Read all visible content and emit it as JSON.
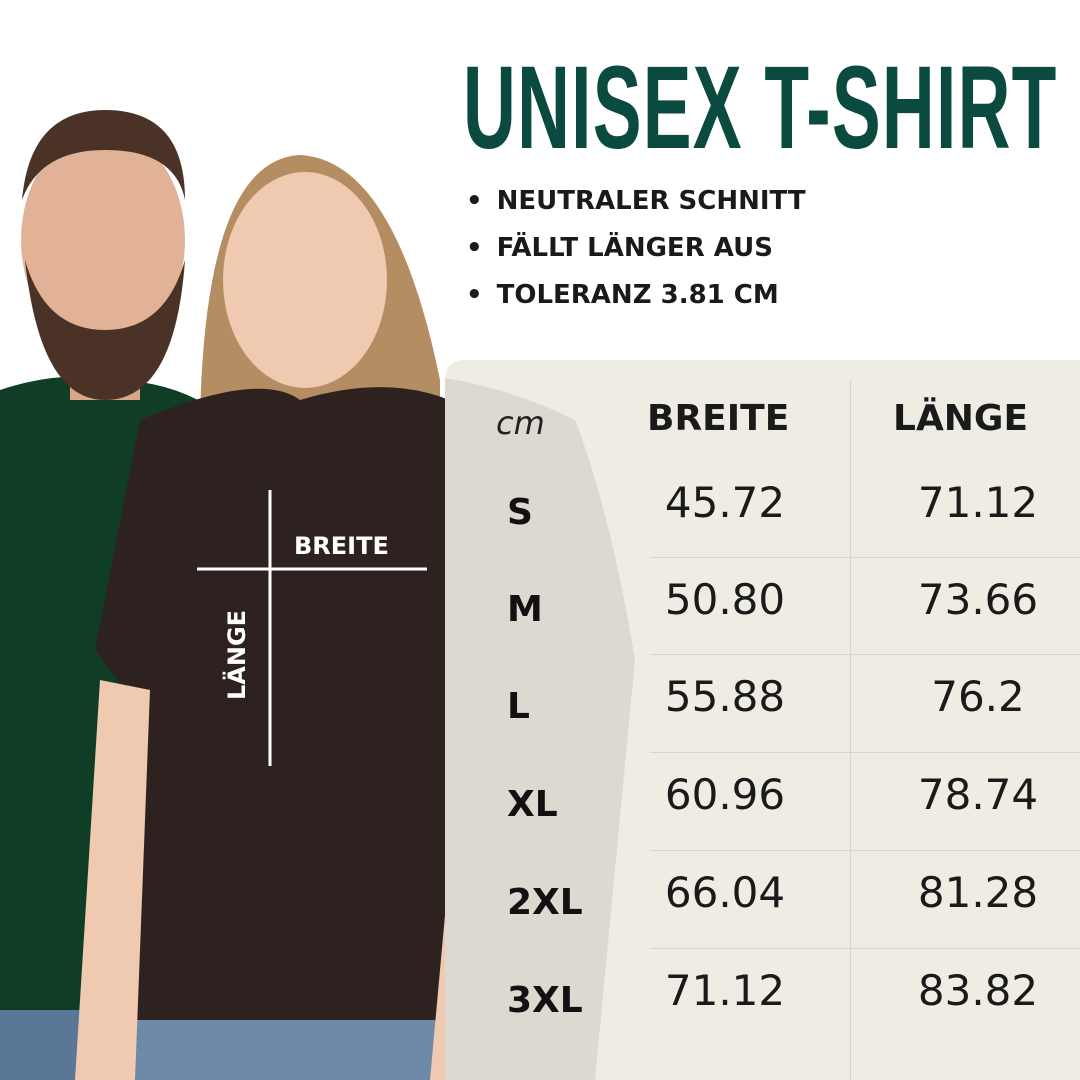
{
  "title": "UNISEX T-SHIRT",
  "features": [
    "NEUTRALER SCHNITT",
    "FÄLLT LÄNGER AUS",
    "TOLERANZ 3.81 CM"
  ],
  "diagram": {
    "width_label": "BREITE",
    "length_label": "LÄNGE"
  },
  "table": {
    "unit": "cm",
    "headers": [
      "BREITE",
      "LÄNGE"
    ],
    "rows": [
      {
        "size": "S",
        "breite": "45.72",
        "laenge": "71.12"
      },
      {
        "size": "M",
        "breite": "50.80",
        "laenge": "73.66"
      },
      {
        "size": "L",
        "breite": "55.88",
        "laenge": "76.2"
      },
      {
        "size": "XL",
        "breite": "60.96",
        "laenge": "78.74"
      },
      {
        "size": "2XL",
        "breite": "66.04",
        "laenge": "81.28"
      },
      {
        "size": "3XL",
        "breite": "71.12",
        "laenge": "83.82"
      }
    ]
  },
  "colors": {
    "title": "#0b4a3f",
    "panel": "#efece3",
    "green_shirt": "#0f3d26",
    "brown_shirt": "#2e2220"
  }
}
